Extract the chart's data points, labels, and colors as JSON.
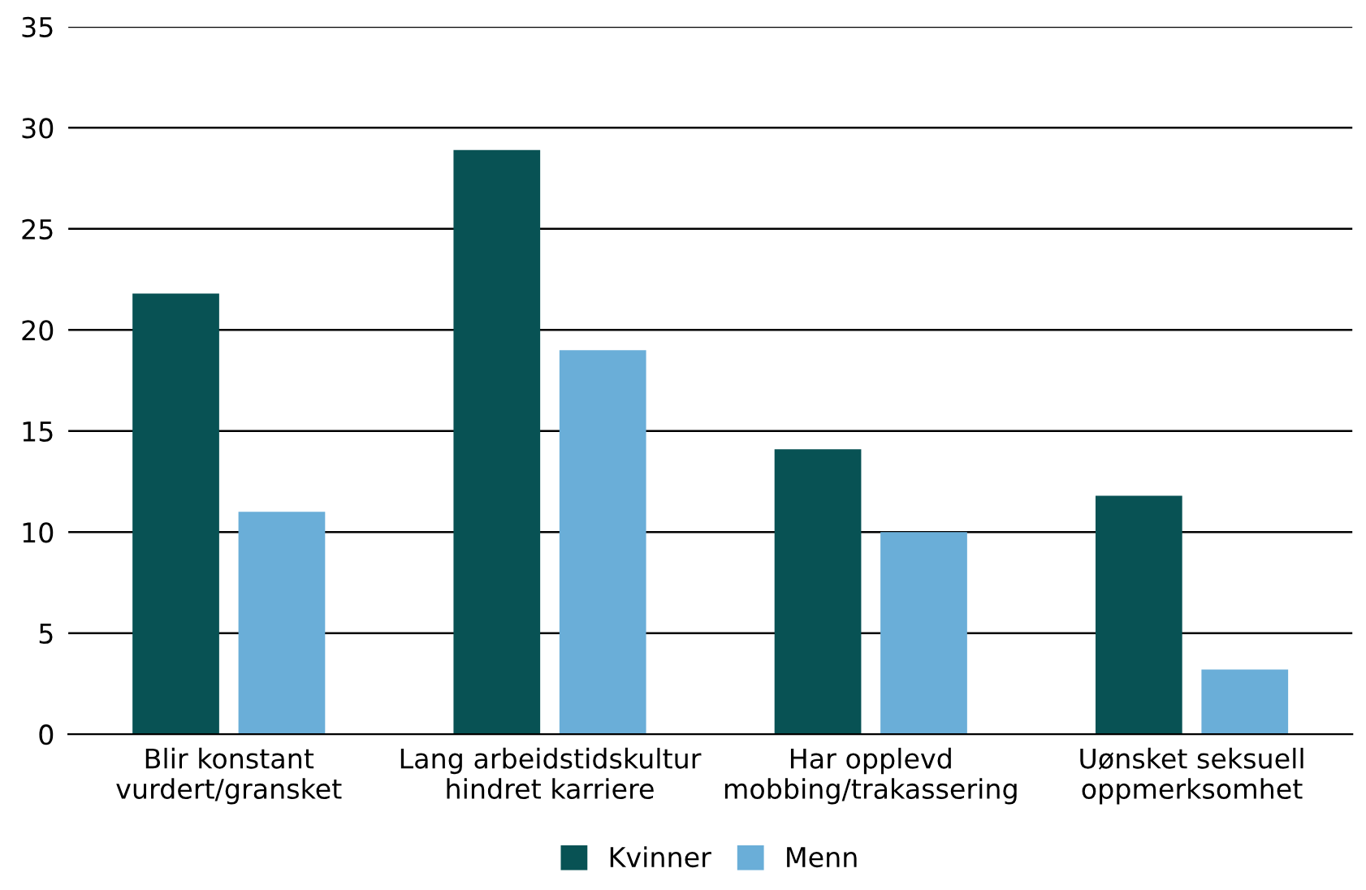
{
  "chart_data": {
    "type": "bar",
    "categories": [
      "Blir konstant\nvurdert/gransket",
      "Lang arbeidstidskultur\nhindret karriere",
      "Har opplevd\nmobbing/trakassering",
      "Uønsket seksuell\noppmerksomhet"
    ],
    "series": [
      {
        "name": "Kvinner",
        "color": "#085254",
        "values": [
          21.8,
          28.9,
          14.1,
          11.8
        ]
      },
      {
        "name": "Menn",
        "color": "#6aaed8",
        "values": [
          11,
          19,
          10,
          3.2
        ]
      }
    ],
    "ylim": [
      0,
      35
    ],
    "yticks": [
      0,
      5,
      10,
      15,
      20,
      25,
      30,
      35
    ],
    "grid": "y",
    "legend": "bottom"
  }
}
